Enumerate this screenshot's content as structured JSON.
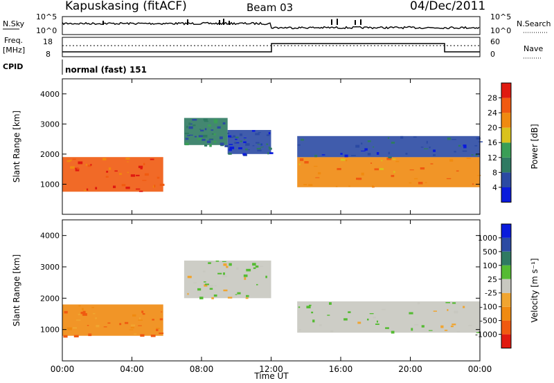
{
  "header": {
    "station": "Kapuskasing (fitACF)",
    "beam": "Beam 03",
    "date": "04/Dec/2011"
  },
  "top_panels": {
    "nsky_label": "N.Sky",
    "nsky_ticks": [
      "10^5",
      "10^0"
    ],
    "nsearch_label": "N.Search",
    "nsearch_ticks": [
      "10^5",
      "10^0"
    ],
    "freq_label": "Freq.",
    "freq_unit": "[MHz]",
    "freq_ticks": [
      "18",
      "8"
    ],
    "nave_label": "Nave",
    "nave_ticks": [
      "60",
      "0"
    ],
    "cpid_label": "CPID",
    "cpid_value": "normal (fast) 151"
  },
  "colors": {
    "power_scale": [
      "#0a1bdc",
      "#2b4aa3",
      "#2f7a62",
      "#3a9e56",
      "#d9c21d",
      "#f08a10",
      "#f05a10",
      "#e01a10"
    ],
    "velocity_scale": [
      "#e01a10",
      "#f05a10",
      "#f08a10",
      "#f0a530",
      "#c8c8c0",
      "#55bb33",
      "#2f7a62",
      "#2b4aa3",
      "#0a1bdc"
    ]
  },
  "chart_data": [
    {
      "type": "heatmap",
      "name": "power",
      "ylabel": "Slant Range [km]",
      "yticks": [
        "1000",
        "2000",
        "3000",
        "4000"
      ],
      "ylim": [
        0,
        4500
      ],
      "xlabel": "Time UT",
      "xticks": [
        "00:00",
        "04:00",
        "08:00",
        "12:00",
        "16:00",
        "20:00",
        "00:00"
      ],
      "xlim_hours": [
        0,
        24
      ],
      "colorbar_label": "Power [dB]",
      "colorbar_ticks": [
        "4",
        "8",
        "12",
        "16",
        "20",
        "24",
        "28"
      ],
      "regions": [
        {
          "t0": 0.0,
          "t1": 5.8,
          "r0": 750,
          "r1": 1900,
          "level": 6
        },
        {
          "t0": 7.0,
          "t1": 9.5,
          "r0": 2300,
          "r1": 3200,
          "level": 2
        },
        {
          "t0": 9.5,
          "t1": 12.0,
          "r0": 2000,
          "r1": 2800,
          "level": 1
        },
        {
          "t0": 13.5,
          "t1": 24.0,
          "r0": 900,
          "r1": 1900,
          "level": 5
        },
        {
          "t0": 13.5,
          "t1": 24.0,
          "r0": 1900,
          "r1": 2600,
          "level": 1
        }
      ]
    },
    {
      "type": "heatmap",
      "name": "velocity",
      "ylabel": "Slant Range [km]",
      "yticks": [
        "1000",
        "2000",
        "3000",
        "4000"
      ],
      "ylim": [
        0,
        4500
      ],
      "xlabel": "Time UT",
      "xticks": [
        "00:00",
        "04:00",
        "08:00",
        "12:00",
        "16:00",
        "20:00",
        "00:00"
      ],
      "xlim_hours": [
        0,
        24
      ],
      "colorbar_label": "Velocity [m s⁻¹]",
      "colorbar_ticks": [
        "1000",
        "500",
        "100",
        "25",
        "-25",
        "-100",
        "-500",
        "-1000"
      ],
      "regions": [
        {
          "t0": 0.0,
          "t1": 5.8,
          "r0": 800,
          "r1": 1800,
          "level": 2
        },
        {
          "t0": 7.0,
          "t1": 12.0,
          "r0": 2000,
          "r1": 3200,
          "level": 4
        },
        {
          "t0": 13.5,
          "t1": 24.0,
          "r0": 900,
          "r1": 1900,
          "level": 4
        }
      ]
    }
  ]
}
